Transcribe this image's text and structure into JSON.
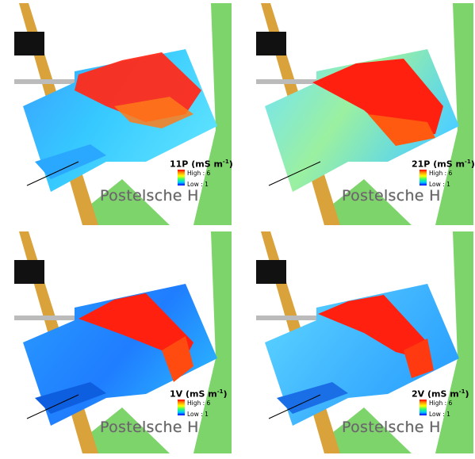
{
  "legend": {
    "high_label": "High : 6",
    "low_label": "Low : 1"
  },
  "place_name": "Postelsche H",
  "panels": [
    {
      "id": "11P",
      "title": "11P",
      "unit": "(mS m",
      "sup": "-1",
      "close": ")"
    },
    {
      "id": "21P",
      "title": "21P",
      "unit": "(mS m",
      "sup": "-1",
      "close": ")"
    },
    {
      "id": "1V",
      "title": "1V",
      "unit": "(mS m",
      "sup": "-1",
      "close": ")"
    },
    {
      "id": "2V",
      "title": "2V",
      "unit": "(mS m",
      "sup": "-1",
      "close": ")"
    }
  ],
  "colors": {
    "grass": "#7dd46a",
    "high": "#ff0000",
    "low": "#1a8cff",
    "road": "#d9a23a",
    "building": "#111111"
  },
  "icons": [
    "legend-color-ramp",
    "field-boundary-lines"
  ]
}
